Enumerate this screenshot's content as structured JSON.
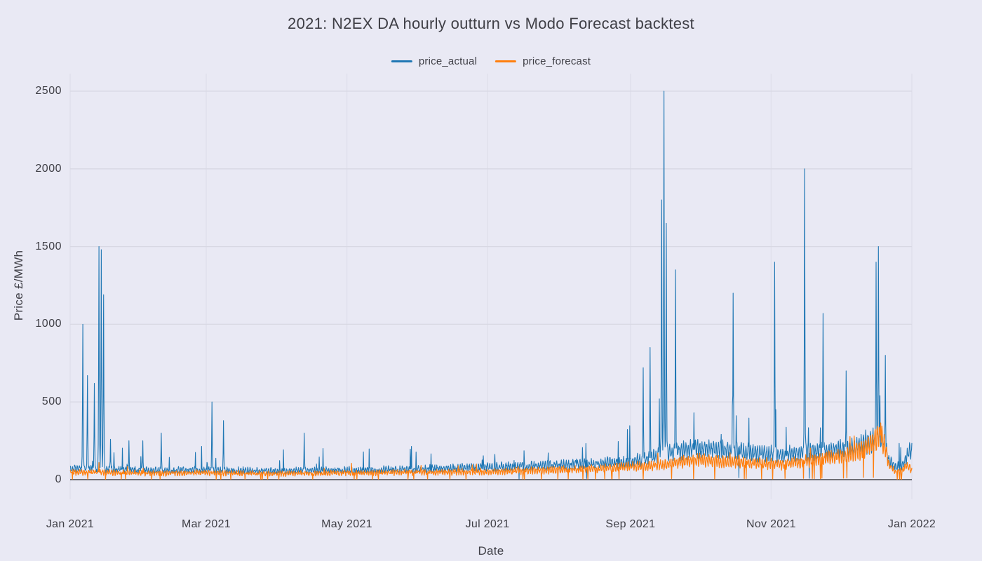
{
  "chart_data": {
    "type": "line",
    "title": "2021: N2EX DA hourly outturn vs Modo Forecast backtest",
    "xlabel": "Date",
    "ylabel": "Price £/MWh",
    "legend_position": "top-center",
    "grid": true,
    "background_color": "#e9e9f4",
    "h_grid_color": "#d8d8e3",
    "v_grid_color": "#e0e0ec",
    "zero_line_color": "#45454d",
    "text_color": "#3f3f46",
    "ylim": [
      0,
      2600
    ],
    "x_range_days": 365,
    "samples_per_day": 6,
    "noise_seed": 11,
    "y_ticks": [
      {
        "label": "0",
        "value": 0
      },
      {
        "label": "500",
        "value": 500
      },
      {
        "label": "1000",
        "value": 1000
      },
      {
        "label": "1500",
        "value": 1500
      },
      {
        "label": "2000",
        "value": 2000
      },
      {
        "label": "2500",
        "value": 2500
      }
    ],
    "x_ticks": [
      {
        "label": "Jan 2021",
        "day": 0
      },
      {
        "label": "Mar 2021",
        "day": 59
      },
      {
        "label": "May 2021",
        "day": 120
      },
      {
        "label": "Jul 2021",
        "day": 181
      },
      {
        "label": "Sep 2021",
        "day": 243
      },
      {
        "label": "Nov 2021",
        "day": 304
      },
      {
        "label": "Jan 2022",
        "day": 365
      }
    ],
    "series": [
      {
        "name": "price_actual",
        "color": "#1f77b4",
        "line_width": 1.1,
        "base_anchors": [
          [
            0,
            72
          ],
          [
            20,
            68
          ],
          [
            40,
            58
          ],
          [
            59,
            62
          ],
          [
            75,
            58
          ],
          [
            90,
            55
          ],
          [
            110,
            60
          ],
          [
            130,
            62
          ],
          [
            150,
            68
          ],
          [
            170,
            75
          ],
          [
            185,
            82
          ],
          [
            200,
            88
          ],
          [
            215,
            95
          ],
          [
            230,
            105
          ],
          [
            243,
            118
          ],
          [
            250,
            135
          ],
          [
            257,
            160
          ],
          [
            265,
            185
          ],
          [
            272,
            200
          ],
          [
            280,
            195
          ],
          [
            290,
            185
          ],
          [
            300,
            170
          ],
          [
            308,
            160
          ],
          [
            316,
            172
          ],
          [
            326,
            185
          ],
          [
            336,
            200
          ],
          [
            342,
            220
          ],
          [
            347,
            252
          ],
          [
            351,
            285
          ],
          [
            353,
            245
          ],
          [
            355,
            125
          ],
          [
            358,
            85
          ],
          [
            361,
            95
          ],
          [
            363,
            160
          ],
          [
            365,
            195
          ]
        ],
        "daily_amp_frac": 0.22,
        "jitter": 13,
        "bump_prob": 0.022,
        "bump_min": 40,
        "bump_max": 170,
        "dip_prob": 0.004,
        "spikes": [
          [
            5,
            1000
          ],
          [
            7,
            670
          ],
          [
            10,
            620
          ],
          [
            12,
            1500
          ],
          [
            13,
            1480
          ],
          [
            14,
            1190
          ],
          [
            17,
            260
          ],
          [
            25,
            250
          ],
          [
            31,
            250
          ],
          [
            39,
            300
          ],
          [
            61,
            500
          ],
          [
            66,
            380
          ],
          [
            101,
            300
          ],
          [
            248,
            720
          ],
          [
            251,
            850
          ],
          [
            255,
            520
          ],
          [
            256,
            1800
          ],
          [
            257,
            2500
          ],
          [
            258,
            1650
          ],
          [
            262,
            1350
          ],
          [
            270,
            430
          ],
          [
            287,
            1200
          ],
          [
            305,
            1400
          ],
          [
            318,
            2000
          ],
          [
            326,
            1070
          ],
          [
            336,
            700
          ],
          [
            349,
            1400
          ],
          [
            350,
            1500
          ],
          [
            353,
            800
          ]
        ]
      },
      {
        "name": "price_forecast",
        "color": "#ff7f0e",
        "line_width": 1.25,
        "base_anchors": [
          [
            0,
            48
          ],
          [
            20,
            46
          ],
          [
            40,
            40
          ],
          [
            59,
            44
          ],
          [
            90,
            38
          ],
          [
            120,
            44
          ],
          [
            150,
            46
          ],
          [
            181,
            52
          ],
          [
            200,
            58
          ],
          [
            215,
            64
          ],
          [
            230,
            72
          ],
          [
            243,
            85
          ],
          [
            257,
            95
          ],
          [
            265,
            112
          ],
          [
            272,
            125
          ],
          [
            280,
            120
          ],
          [
            290,
            115
          ],
          [
            300,
            105
          ],
          [
            308,
            98
          ],
          [
            316,
            112
          ],
          [
            326,
            132
          ],
          [
            336,
            155
          ],
          [
            342,
            185
          ],
          [
            347,
            230
          ],
          [
            351,
            290
          ],
          [
            353,
            235
          ],
          [
            355,
            95
          ],
          [
            358,
            45
          ],
          [
            361,
            60
          ],
          [
            363,
            90
          ],
          [
            365,
            60
          ]
        ],
        "daily_amp_frac": 0.25,
        "jitter": 11,
        "bump_prob": 0.008,
        "bump_min": 20,
        "bump_max": 60,
        "dip_prob": 0.028,
        "spikes": [
          [
            12,
            110
          ],
          [
            351,
            365
          ]
        ]
      }
    ]
  }
}
